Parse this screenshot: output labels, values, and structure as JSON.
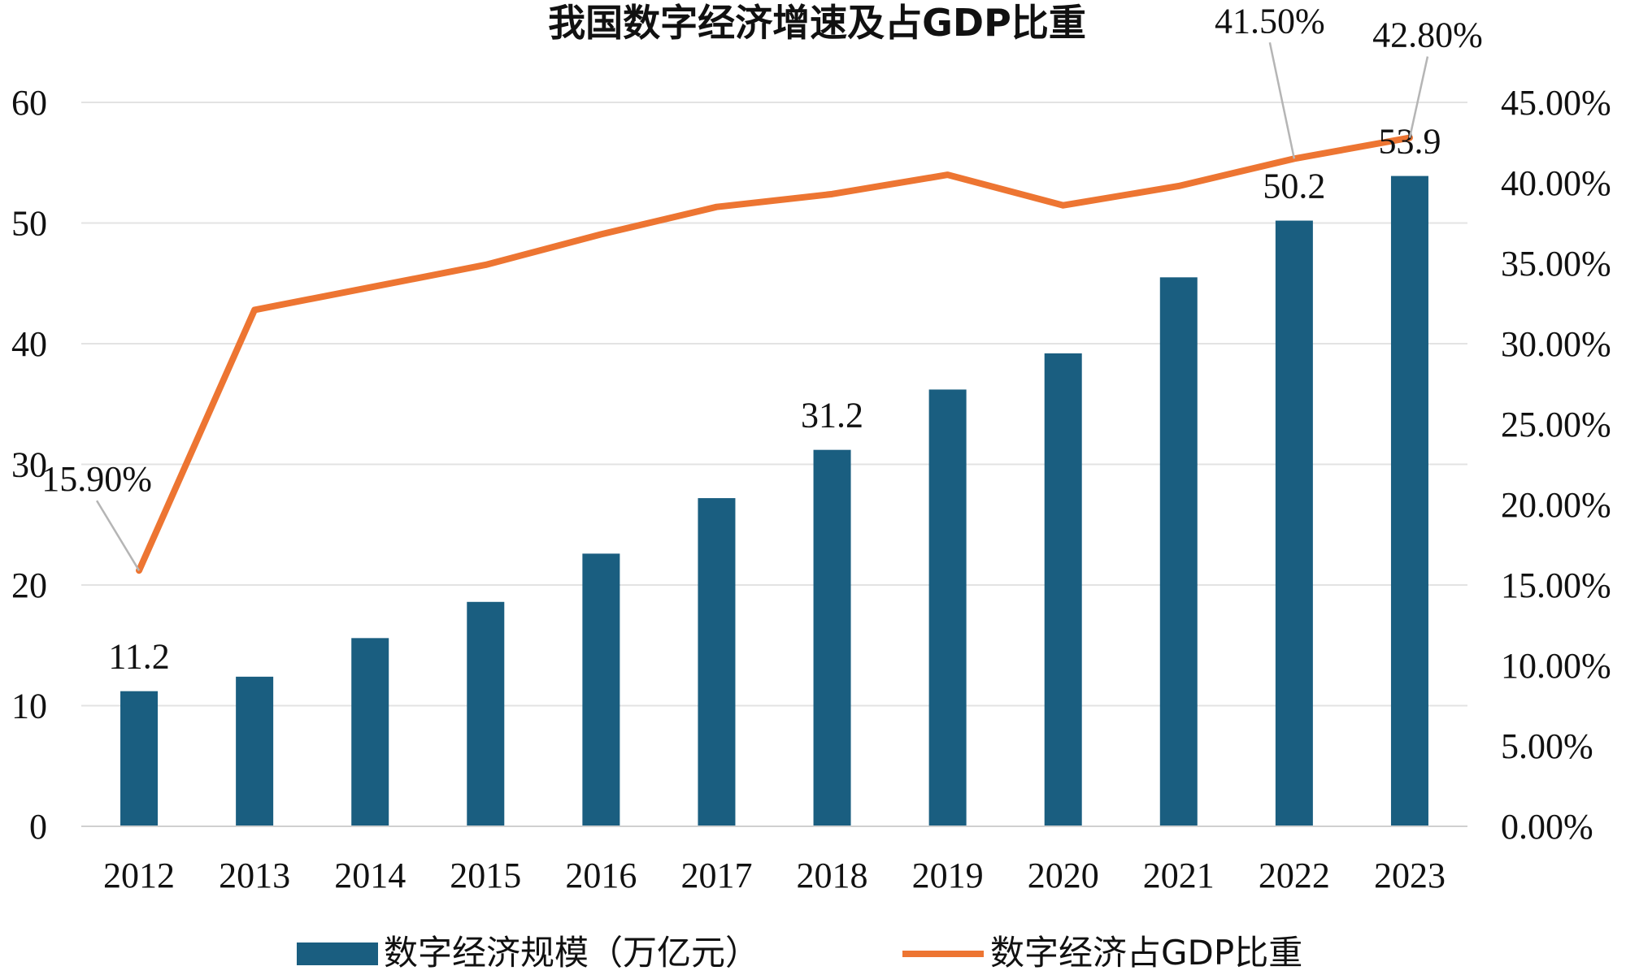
{
  "chart_data": {
    "type": "bar+line",
    "title": "我国数字经济增速及占GDP比重",
    "categories": [
      "2012",
      "2013",
      "2014",
      "2015",
      "2016",
      "2017",
      "2018",
      "2019",
      "2020",
      "2021",
      "2022",
      "2023"
    ],
    "series": [
      {
        "name": "数字经济规模（万亿元）",
        "type": "bar",
        "axis": "left",
        "color": "#1a5e80",
        "values": [
          11.2,
          12.4,
          15.6,
          18.6,
          22.6,
          27.2,
          31.2,
          36.2,
          39.2,
          45.5,
          50.2,
          53.9
        ]
      },
      {
        "name": "数字经济占GDP比重",
        "type": "line",
        "axis": "right",
        "color": "#ed7532",
        "values": [
          15.9,
          32.1,
          33.5,
          34.9,
          36.8,
          38.5,
          39.3,
          40.5,
          38.6,
          39.8,
          41.5,
          42.8
        ]
      }
    ],
    "left_axis": {
      "min": 0,
      "max": 60,
      "step": 10,
      "ticks": [
        "0",
        "10",
        "20",
        "30",
        "40",
        "50",
        "60"
      ]
    },
    "right_axis": {
      "min": 0,
      "max": 45,
      "step": 5,
      "ticks": [
        "0.00%",
        "5.00%",
        "10.00%",
        "15.00%",
        "20.00%",
        "25.00%",
        "30.00%",
        "35.00%",
        "40.00%",
        "45.00%"
      ]
    },
    "bar_labels": [
      {
        "index": 0,
        "text": "11.2"
      },
      {
        "index": 6,
        "text": "31.2"
      },
      {
        "index": 10,
        "text": "50.2"
      },
      {
        "index": 11,
        "text": "53.9"
      }
    ],
    "line_labels": [
      {
        "index": 0,
        "text": "15.90%"
      },
      {
        "index": 10,
        "text": "41.50%"
      },
      {
        "index": 11,
        "text": "42.80%"
      }
    ],
    "grid": true,
    "legend_position": "bottom"
  }
}
